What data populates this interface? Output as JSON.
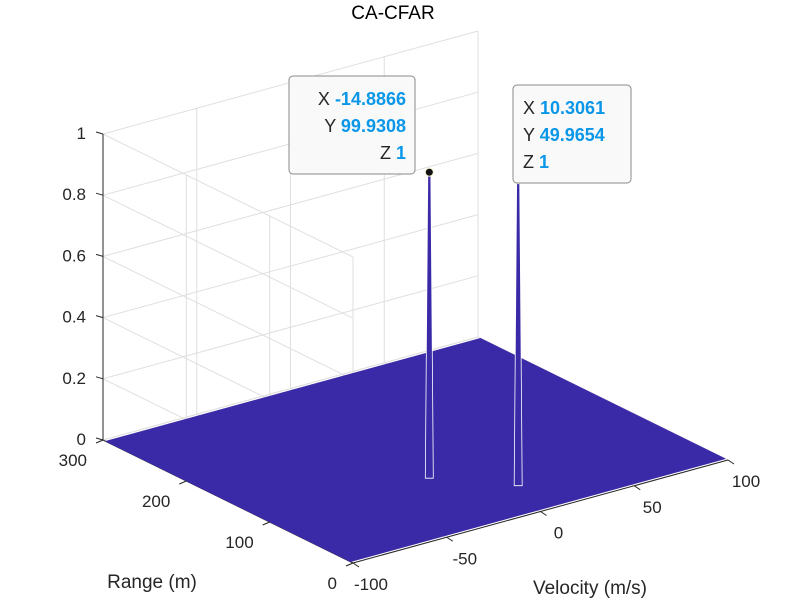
{
  "chart_data": {
    "type": "surface3d",
    "title": "CA-CFAR",
    "xlabel": "Velocity (m/s)",
    "ylabel": "Range (m)",
    "zlabel": "",
    "xlim": [
      -100,
      100
    ],
    "ylim": [
      0,
      300
    ],
    "zlim": [
      0,
      1
    ],
    "x_ticks": [
      -100,
      -50,
      0,
      50,
      100
    ],
    "y_ticks": [
      0,
      100,
      200,
      300
    ],
    "z_ticks": [
      0,
      0.2,
      0.4,
      0.6,
      0.8,
      1
    ],
    "x_tick_labels": [
      "-100",
      "-50",
      "0",
      "50",
      "100"
    ],
    "y_tick_labels": [
      "0",
      "100",
      "200",
      "300"
    ],
    "z_tick_labels": [
      "0",
      "0.2",
      "0.4",
      "0.6",
      "0.8",
      "1"
    ],
    "grid": true,
    "surface_color": "#3b2aa8",
    "peaks": [
      {
        "x": -14.8866,
        "y": 99.9308,
        "z": 1
      },
      {
        "x": 10.3061,
        "y": 49.9654,
        "z": 1
      }
    ],
    "datatips": [
      {
        "x_key": "X",
        "x_val": "-14.8866",
        "y_key": "Y",
        "y_val": "99.9308",
        "z_key": "Z",
        "z_val": "1"
      },
      {
        "x_key": "X",
        "x_val": "10.3061",
        "y_key": "Y",
        "y_val": "49.9654",
        "z_key": "Z",
        "z_val": "1"
      }
    ],
    "colors": {
      "grid": "#dfdfdf",
      "axis": "#262626",
      "value_text": "#0a97e8",
      "spike_edge": "#ffffff"
    }
  }
}
